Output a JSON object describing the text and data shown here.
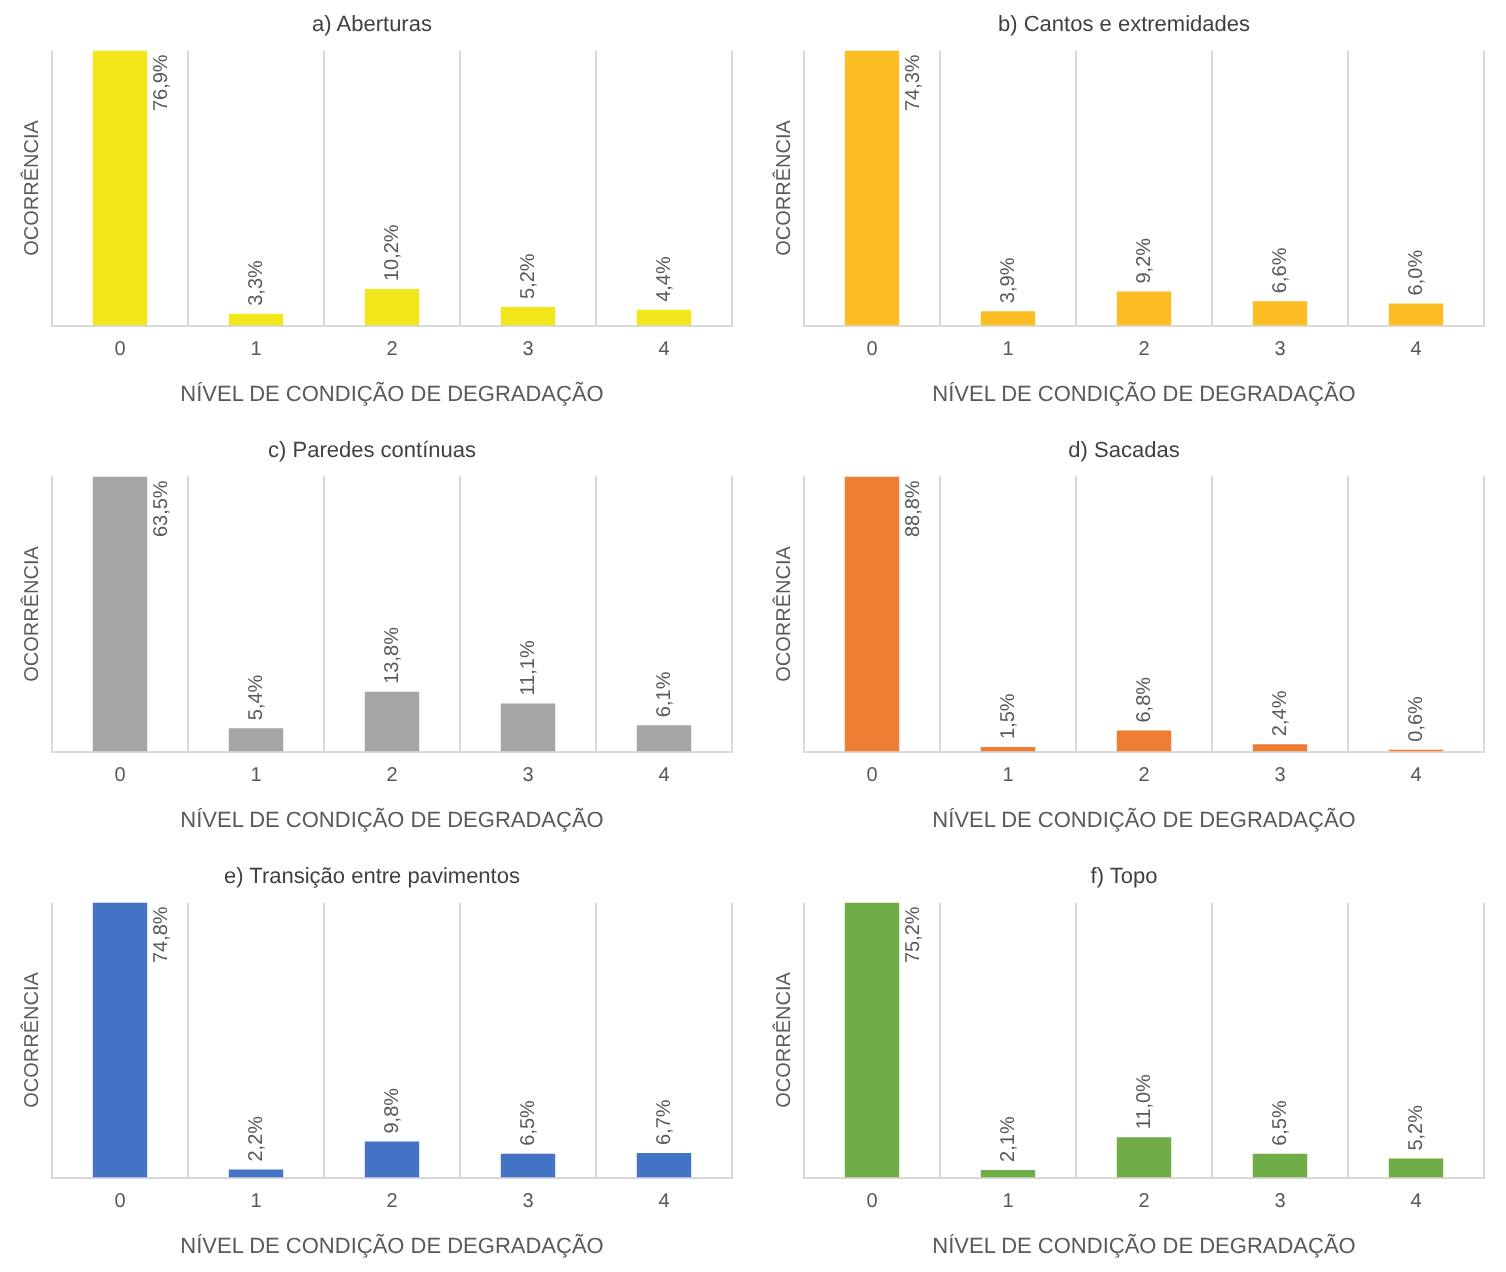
{
  "chart_data": [
    {
      "type": "bar",
      "title": "a) Aberturas",
      "xlabel": "NÍVEL DE CONDIÇÃO DE DEGRADAÇÃO",
      "ylabel": "OCORRÊNCIA",
      "categories": [
        "0",
        "1",
        "2",
        "3",
        "4"
      ],
      "values": [
        76.9,
        3.3,
        10.2,
        5.2,
        4.4
      ],
      "value_labels": [
        "76,9%",
        "3,3%",
        "10,2%",
        "5,2%",
        "4,4%"
      ],
      "color": "#f2e71a",
      "grid": "x",
      "tick_labels": "x"
    },
    {
      "type": "bar",
      "title": "b) Cantos e extremidades",
      "xlabel": "NÍVEL DE CONDIÇÃO DE DEGRADAÇÃO",
      "ylabel": "OCORRÊNCIA",
      "categories": [
        "0",
        "1",
        "2",
        "3",
        "4"
      ],
      "values": [
        74.3,
        3.9,
        9.2,
        6.6,
        6.0
      ],
      "value_labels": [
        "74,3%",
        "3,9%",
        "9,2%",
        "6,6%",
        "6,0%"
      ],
      "color": "#fbbc24",
      "grid": "x",
      "tick_labels": "x"
    },
    {
      "type": "bar",
      "title": "c) Paredes contínuas",
      "xlabel": "NÍVEL DE CONDIÇÃO DE DEGRADAÇÃO",
      "ylabel": "OCORRÊNCIA",
      "categories": [
        "0",
        "1",
        "2",
        "3",
        "4"
      ],
      "values": [
        63.5,
        5.4,
        13.8,
        11.1,
        6.1
      ],
      "value_labels": [
        "63,5%",
        "5,4%",
        "13,8%",
        "11,1%",
        "6,1%"
      ],
      "color": "#a5a5a5",
      "grid": "x",
      "tick_labels": "x"
    },
    {
      "type": "bar",
      "title": "d) Sacadas",
      "xlabel": "NÍVEL DE CONDIÇÃO DE DEGRADAÇÃO",
      "ylabel": "OCORRÊNCIA",
      "categories": [
        "0",
        "1",
        "2",
        "3",
        "4"
      ],
      "values": [
        88.8,
        1.5,
        6.8,
        2.4,
        0.6
      ],
      "value_labels": [
        "88,8%",
        "1,5%",
        "6,8%",
        "2,4%",
        "0,6%"
      ],
      "color": "#ed7d31",
      "grid": "x",
      "tick_labels": "x"
    },
    {
      "type": "bar",
      "title": "e) Transição entre pavimentos",
      "xlabel": "NÍVEL DE CONDIÇÃO DE DEGRADAÇÃO",
      "ylabel": "OCORRÊNCIA",
      "categories": [
        "0",
        "1",
        "2",
        "3",
        "4"
      ],
      "values": [
        74.8,
        2.2,
        9.8,
        6.5,
        6.7
      ],
      "value_labels": [
        "74,8%",
        "2,2%",
        "9,8%",
        "6,5%",
        "6,7%"
      ],
      "color": "#4472c4",
      "grid": "x",
      "tick_labels": "x"
    },
    {
      "type": "bar",
      "title": "f) Topo",
      "xlabel": "NÍVEL DE CONDIÇÃO DE DEGRADAÇÃO",
      "ylabel": "OCORRÊNCIA",
      "categories": [
        "0",
        "1",
        "2",
        "3",
        "4"
      ],
      "values": [
        75.2,
        2.1,
        11.0,
        6.5,
        5.2
      ],
      "value_labels": [
        "75,2%",
        "2,1%",
        "11,0%",
        "6,5%",
        "5,2%"
      ],
      "color": "#70ad47",
      "grid": "x",
      "tick_labels": "x"
    }
  ]
}
